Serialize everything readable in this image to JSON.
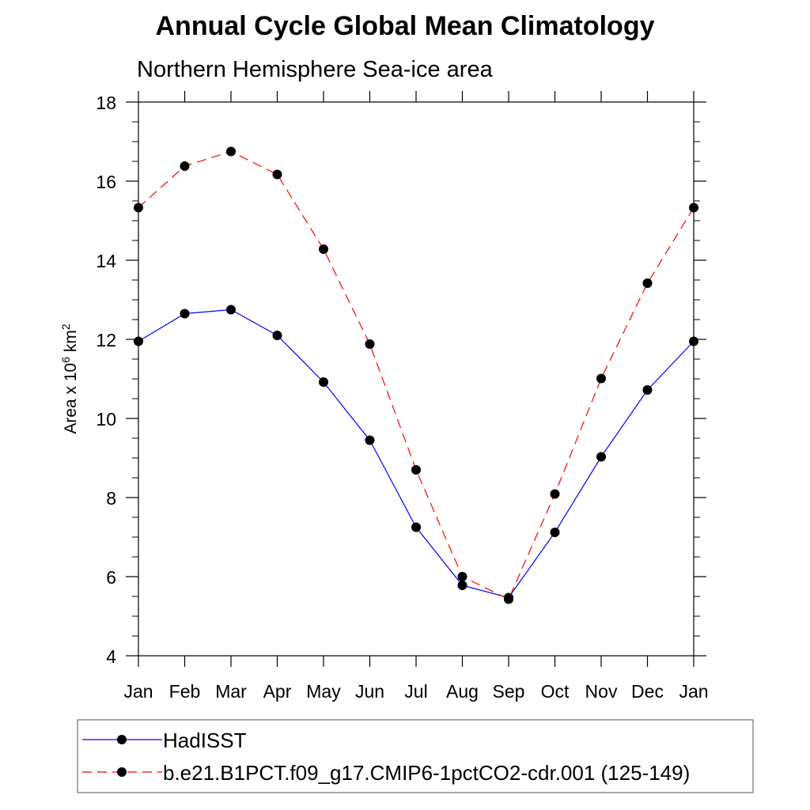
{
  "chart_data": {
    "type": "line",
    "title": "Annual Cycle Global Mean Climatology",
    "subtitle": "Northern Hemisphere Sea-ice area",
    "ylabel": "Area x 10",
    "ylabel_exponent": "6",
    "ylabel_unit": "km",
    "ylabel_unit_exponent": "2",
    "ylim": [
      4,
      18
    ],
    "yticks": [
      4,
      6,
      8,
      10,
      12,
      14,
      16,
      18
    ],
    "categories": [
      "Jan",
      "Feb",
      "Mar",
      "Apr",
      "May",
      "Jun",
      "Jul",
      "Aug",
      "Sep",
      "Oct",
      "Nov",
      "Dec",
      "Jan"
    ],
    "series": [
      {
        "name": "HadISST",
        "color": "#0000ff",
        "dash": "solid",
        "marker": "filled-circle",
        "values": [
          11.95,
          12.65,
          12.75,
          12.1,
          10.92,
          9.45,
          7.25,
          5.78,
          5.47,
          7.12,
          9.03,
          10.72,
          11.95
        ]
      },
      {
        "name": "b.e21.B1PCT.f09_g17.CMIP6-1pctCO2-cdr.001 (125-149)",
        "color": "#ff0000",
        "dash": "dashed",
        "marker": "filled-circle",
        "values": [
          15.33,
          16.38,
          16.75,
          16.17,
          14.28,
          11.88,
          8.7,
          6.0,
          5.43,
          8.09,
          11.01,
          13.42,
          15.33
        ]
      }
    ],
    "grid": false,
    "legend_position": "bottom"
  }
}
